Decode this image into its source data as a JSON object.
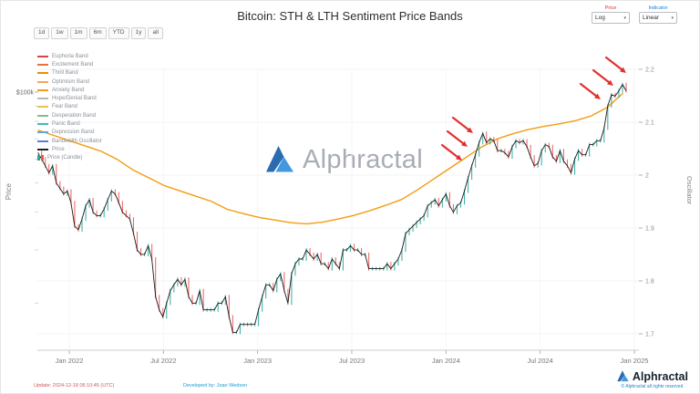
{
  "header": {
    "title": "Bitcoin: STH & LTH Sentiment Price Bands"
  },
  "controls": {
    "ranges": [
      "1d",
      "1w",
      "1m",
      "6m",
      "YTD",
      "1y",
      "all"
    ],
    "price_label": "Price",
    "price_value": "Log",
    "indicator_label": "Indicator",
    "indicator_value": "Linear"
  },
  "legend": [
    {
      "label": "Euphoria Band",
      "color": "#d64545",
      "swatch": "line"
    },
    {
      "label": "Excitement Band",
      "color": "#e8733a",
      "swatch": "line"
    },
    {
      "label": "Thrill Band",
      "color": "#f08c00",
      "swatch": "line"
    },
    {
      "label": "Optimism Band",
      "color": "#f2a65a",
      "swatch": "line"
    },
    {
      "label": "Anxiety Band",
      "color": "#f39c12",
      "swatch": "line"
    },
    {
      "label": "Hope/Denial Band",
      "color": "#b8b8b8",
      "swatch": "line"
    },
    {
      "label": "Fear Band",
      "color": "#e8c547",
      "swatch": "line"
    },
    {
      "label": "Desperation Band",
      "color": "#7dc383",
      "swatch": "line"
    },
    {
      "label": "Panic Band",
      "color": "#4db6ac",
      "swatch": "line"
    },
    {
      "label": "Depression Band",
      "color": "#64a5d8",
      "swatch": "line"
    },
    {
      "label": "Bandwidth Oscillator",
      "color": "#5b7bd5",
      "swatch": "line"
    },
    {
      "label": "Price",
      "color": "#222222",
      "swatch": "line"
    },
    {
      "label": "Price (Candle)",
      "color": "#26a69a",
      "swatch": "candle"
    }
  ],
  "watermark": {
    "text": "Alphractal"
  },
  "footer": {
    "update": "Update: 2024-12-18 06:10:45 (UTC)",
    "developed": "Developed by: Joao Wedson",
    "brand": "Alphractal",
    "copyright": "© Alphractal all rights reserved"
  },
  "chart_data": {
    "type": "line",
    "title": "Bitcoin: STH & LTH Sentiment Price Bands",
    "x_ticks": [
      "Jan 2022",
      "Jul 2022",
      "Jan 2023",
      "Jul 2023",
      "Jan 2024",
      "Jul 2024",
      "Jan 2025"
    ],
    "left_axis": {
      "title": "Price",
      "scale": "log",
      "tick_label": "$100k",
      "minor_ticks_k": [
        90,
        80,
        70,
        60,
        50,
        40,
        30,
        20
      ]
    },
    "right_axis": {
      "title": "Oscillator",
      "ticks": [
        2.2,
        2.1,
        2.0,
        1.9,
        1.8,
        1.7
      ]
    },
    "candle_up": "#26a69a",
    "candle_down": "#ef5350",
    "series": [
      {
        "name": "Price",
        "type": "candle-line",
        "color": "#1a1a1a",
        "unit": "thousand USD",
        "interval": "weekly",
        "start": "2021-11",
        "values": [
          63,
          60,
          57,
          54,
          57,
          50,
          48,
          46,
          47,
          43,
          36,
          35,
          38,
          42,
          44,
          40,
          39,
          39,
          41,
          44,
          47,
          46,
          43,
          40,
          39,
          38,
          34,
          30,
          29,
          29,
          31,
          28,
          21,
          19,
          18,
          20,
          22,
          23,
          24,
          23,
          24,
          21,
          20,
          20,
          22,
          19,
          19,
          19,
          19,
          20,
          20,
          21,
          18,
          16,
          16,
          17,
          17,
          17,
          17,
          17,
          19,
          21,
          23,
          23,
          22,
          24,
          25,
          22,
          20,
          25,
          27,
          28,
          28,
          30,
          29,
          28,
          29,
          27,
          27,
          26,
          28,
          27,
          26,
          30,
          30,
          31,
          30,
          30,
          29,
          29,
          26,
          26,
          26,
          26,
          26,
          27,
          26,
          27,
          28,
          30,
          34,
          35,
          36,
          37,
          38,
          39,
          42,
          43,
          44,
          42,
          44,
          46,
          42,
          40,
          42,
          43,
          47,
          52,
          57,
          62,
          68,
          73,
          68,
          70,
          69,
          64,
          64,
          63,
          61,
          66,
          69,
          68,
          69,
          66,
          61,
          57,
          58,
          64,
          67,
          66,
          61,
          59,
          64,
          59,
          57,
          54,
          60,
          64,
          62,
          62,
          67,
          67,
          69,
          69,
          76,
          90,
          98,
          97,
          101,
          106,
          101
        ]
      },
      {
        "name": "Anxiety Band",
        "type": "line",
        "axis": "right",
        "color": "#f39c12",
        "interval": "monthly",
        "start": "2021-11",
        "values": [
          2.085,
          2.075,
          2.065,
          2.055,
          2.045,
          2.03,
          2.01,
          1.995,
          1.98,
          1.97,
          1.96,
          1.95,
          1.935,
          1.927,
          1.92,
          1.915,
          1.91,
          1.908,
          1.911,
          1.917,
          1.924,
          1.933,
          1.943,
          1.954,
          1.972,
          1.992,
          2.012,
          2.032,
          2.052,
          2.068,
          2.078,
          2.086,
          2.092,
          2.097,
          2.103,
          2.112,
          2.128,
          2.155
        ]
      }
    ],
    "annotations": {
      "color": "#e03131",
      "arrows": [
        [
          496,
          80,
          518,
          97
        ],
        [
          490,
          95,
          512,
          112
        ],
        [
          484,
          110,
          506,
          127
        ],
        [
          664,
          14,
          686,
          31
        ],
        [
          650,
          28,
          672,
          45
        ],
        [
          636,
          43,
          658,
          60
        ]
      ]
    }
  }
}
